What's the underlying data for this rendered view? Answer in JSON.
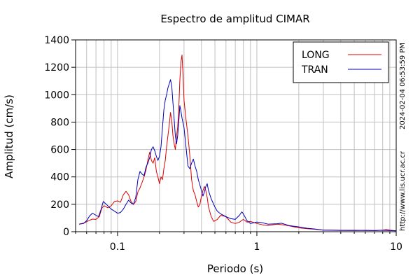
{
  "chart_data": {
    "type": "line",
    "title": "Espectro de amplitud CIMAR",
    "xlabel": "Periodo (s)",
    "ylabel": "Amplitud (cm/s)",
    "x_scale": "log",
    "xlim": [
      0.05,
      10
    ],
    "ylim": [
      0,
      1400
    ],
    "x_ticks": [
      0.1,
      1,
      10
    ],
    "x_tick_labels": [
      "0.1",
      "1",
      "10"
    ],
    "y_ticks": [
      0,
      200,
      400,
      600,
      800,
      1000,
      1200,
      1400
    ],
    "y_tick_labels": [
      "0",
      "200",
      "400",
      "600",
      "800",
      "1000",
      "1200",
      "1400"
    ],
    "grid": true,
    "legend_position": "top-right",
    "side_labels": {
      "timestamp": "2024-02-04 06:53:59 PM",
      "url": "http://www.lis.ucr.ac.cr"
    },
    "series": [
      {
        "name": "LONG",
        "color": "#dd0000",
        "points": [
          [
            0.053,
            55
          ],
          [
            0.058,
            65
          ],
          [
            0.062,
            80
          ],
          [
            0.066,
            92
          ],
          [
            0.07,
            90
          ],
          [
            0.074,
            110
          ],
          [
            0.077,
            170
          ],
          [
            0.08,
            190
          ],
          [
            0.085,
            175
          ],
          [
            0.09,
            190
          ],
          [
            0.095,
            220
          ],
          [
            0.1,
            225
          ],
          [
            0.105,
            215
          ],
          [
            0.11,
            270
          ],
          [
            0.115,
            295
          ],
          [
            0.12,
            270
          ],
          [
            0.125,
            220
          ],
          [
            0.13,
            200
          ],
          [
            0.135,
            220
          ],
          [
            0.14,
            290
          ],
          [
            0.145,
            320
          ],
          [
            0.15,
            360
          ],
          [
            0.155,
            400
          ],
          [
            0.16,
            450
          ],
          [
            0.165,
            520
          ],
          [
            0.17,
            580
          ],
          [
            0.175,
            520
          ],
          [
            0.18,
            500
          ],
          [
            0.185,
            540
          ],
          [
            0.19,
            440
          ],
          [
            0.195,
            400
          ],
          [
            0.2,
            350
          ],
          [
            0.205,
            400
          ],
          [
            0.21,
            380
          ],
          [
            0.215,
            460
          ],
          [
            0.22,
            520
          ],
          [
            0.225,
            620
          ],
          [
            0.23,
            700
          ],
          [
            0.235,
            780
          ],
          [
            0.24,
            870
          ],
          [
            0.245,
            810
          ],
          [
            0.25,
            700
          ],
          [
            0.255,
            640
          ],
          [
            0.26,
            600
          ],
          [
            0.265,
            700
          ],
          [
            0.27,
            760
          ],
          [
            0.275,
            900
          ],
          [
            0.28,
            1100
          ],
          [
            0.285,
            1240
          ],
          [
            0.29,
            1290
          ],
          [
            0.295,
            1150
          ],
          [
            0.3,
            960
          ],
          [
            0.31,
            820
          ],
          [
            0.32,
            700
          ],
          [
            0.33,
            560
          ],
          [
            0.34,
            380
          ],
          [
            0.35,
            300
          ],
          [
            0.36,
            270
          ],
          [
            0.37,
            220
          ],
          [
            0.38,
            180
          ],
          [
            0.39,
            200
          ],
          [
            0.4,
            260
          ],
          [
            0.41,
            300
          ],
          [
            0.42,
            330
          ],
          [
            0.43,
            300
          ],
          [
            0.44,
            250
          ],
          [
            0.45,
            180
          ],
          [
            0.47,
            110
          ],
          [
            0.49,
            75
          ],
          [
            0.52,
            90
          ],
          [
            0.55,
            120
          ],
          [
            0.6,
            110
          ],
          [
            0.65,
            70
          ],
          [
            0.7,
            60
          ],
          [
            0.75,
            70
          ],
          [
            0.8,
            90
          ],
          [
            0.85,
            70
          ],
          [
            0.9,
            75
          ],
          [
            1.0,
            60
          ],
          [
            1.1,
            50
          ],
          [
            1.2,
            45
          ],
          [
            1.4,
            55
          ],
          [
            1.6,
            48
          ],
          [
            1.8,
            38
          ],
          [
            2.0,
            28
          ],
          [
            2.3,
            22
          ],
          [
            2.6,
            18
          ],
          [
            3.0,
            12
          ],
          [
            3.5,
            10
          ],
          [
            4.0,
            9
          ],
          [
            5.0,
            8
          ],
          [
            6.0,
            10
          ],
          [
            7.0,
            8
          ],
          [
            8.0,
            12
          ],
          [
            8.5,
            16
          ],
          [
            9.0,
            12
          ],
          [
            10.0,
            6
          ]
        ]
      },
      {
        "name": "TRAN",
        "color": "#0000bb",
        "points": [
          [
            0.053,
            55
          ],
          [
            0.057,
            60
          ],
          [
            0.06,
            80
          ],
          [
            0.063,
            115
          ],
          [
            0.066,
            135
          ],
          [
            0.07,
            120
          ],
          [
            0.073,
            110
          ],
          [
            0.076,
            160
          ],
          [
            0.079,
            220
          ],
          [
            0.082,
            205
          ],
          [
            0.086,
            185
          ],
          [
            0.09,
            165
          ],
          [
            0.095,
            150
          ],
          [
            0.1,
            135
          ],
          [
            0.105,
            140
          ],
          [
            0.11,
            165
          ],
          [
            0.115,
            200
          ],
          [
            0.12,
            230
          ],
          [
            0.125,
            210
          ],
          [
            0.13,
            200
          ],
          [
            0.135,
            250
          ],
          [
            0.14,
            380
          ],
          [
            0.145,
            440
          ],
          [
            0.15,
            420
          ],
          [
            0.155,
            410
          ],
          [
            0.16,
            470
          ],
          [
            0.165,
            500
          ],
          [
            0.17,
            540
          ],
          [
            0.175,
            600
          ],
          [
            0.18,
            620
          ],
          [
            0.185,
            590
          ],
          [
            0.19,
            550
          ],
          [
            0.195,
            520
          ],
          [
            0.2,
            550
          ],
          [
            0.205,
            620
          ],
          [
            0.21,
            760
          ],
          [
            0.215,
            890
          ],
          [
            0.22,
            960
          ],
          [
            0.225,
            1000
          ],
          [
            0.23,
            1050
          ],
          [
            0.235,
            1080
          ],
          [
            0.24,
            1110
          ],
          [
            0.245,
            1060
          ],
          [
            0.25,
            940
          ],
          [
            0.255,
            820
          ],
          [
            0.26,
            700
          ],
          [
            0.265,
            640
          ],
          [
            0.27,
            700
          ],
          [
            0.275,
            800
          ],
          [
            0.28,
            920
          ],
          [
            0.285,
            880
          ],
          [
            0.29,
            830
          ],
          [
            0.3,
            760
          ],
          [
            0.31,
            620
          ],
          [
            0.32,
            480
          ],
          [
            0.33,
            460
          ],
          [
            0.34,
            500
          ],
          [
            0.35,
            530
          ],
          [
            0.36,
            480
          ],
          [
            0.37,
            440
          ],
          [
            0.38,
            380
          ],
          [
            0.39,
            340
          ],
          [
            0.4,
            300
          ],
          [
            0.41,
            260
          ],
          [
            0.42,
            290
          ],
          [
            0.43,
            330
          ],
          [
            0.44,
            350
          ],
          [
            0.45,
            300
          ],
          [
            0.47,
            240
          ],
          [
            0.5,
            180
          ],
          [
            0.52,
            150
          ],
          [
            0.55,
            130
          ],
          [
            0.6,
            110
          ],
          [
            0.65,
            95
          ],
          [
            0.7,
            90
          ],
          [
            0.75,
            120
          ],
          [
            0.78,
            145
          ],
          [
            0.8,
            130
          ],
          [
            0.85,
            80
          ],
          [
            0.9,
            60
          ],
          [
            1.0,
            70
          ],
          [
            1.1,
            65
          ],
          [
            1.2,
            55
          ],
          [
            1.4,
            58
          ],
          [
            1.5,
            62
          ],
          [
            1.7,
            45
          ],
          [
            2.0,
            35
          ],
          [
            2.3,
            25
          ],
          [
            2.6,
            20
          ],
          [
            3.0,
            12
          ],
          [
            3.5,
            12
          ],
          [
            4.0,
            10
          ],
          [
            5.0,
            10
          ],
          [
            6.0,
            9
          ],
          [
            7.0,
            8
          ],
          [
            8.0,
            10
          ],
          [
            9.0,
            8
          ],
          [
            10.0,
            6
          ]
        ]
      }
    ]
  }
}
